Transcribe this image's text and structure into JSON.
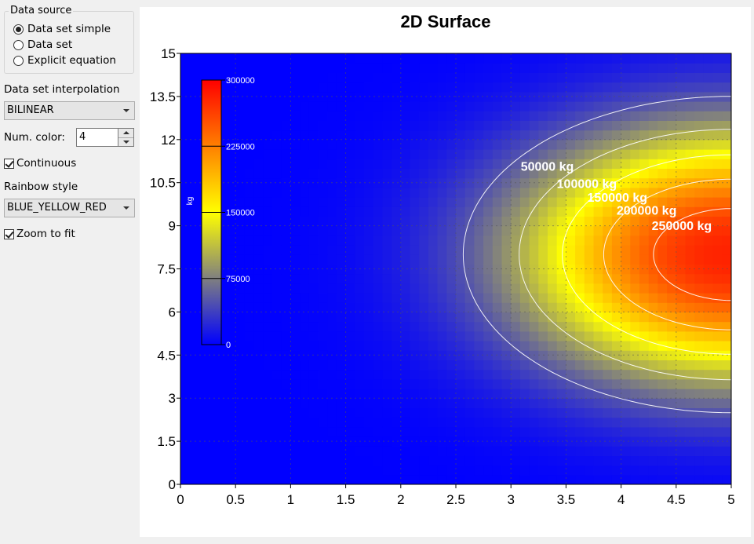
{
  "controls": {
    "data_source": {
      "title": "Data source",
      "options": [
        {
          "label": "Data set simple",
          "checked": true
        },
        {
          "label": "Data set",
          "checked": false
        },
        {
          "label": "Explicit equation",
          "checked": false
        }
      ]
    },
    "interpolation": {
      "label": "Data set interpolation",
      "value": "BILINEAR"
    },
    "num_color": {
      "label": "Num. color:",
      "value": "4"
    },
    "continuous": {
      "label": "Continuous",
      "checked": true
    },
    "rainbow": {
      "label": "Rainbow style",
      "value": "BLUE_YELLOW_RED"
    },
    "zoom": {
      "label": "Zoom to fit",
      "checked": true
    }
  },
  "chart_data": {
    "type": "heatmap",
    "title": "2D Surface",
    "xlabel": "",
    "ylabel": "",
    "xlim": [
      0,
      5
    ],
    "ylim": [
      0,
      15
    ],
    "xticks": [
      "0",
      "0.5",
      "1",
      "1.5",
      "2",
      "2.5",
      "3",
      "3.5",
      "4",
      "4.5",
      "5"
    ],
    "yticks": [
      "0",
      "1.5",
      "3",
      "4.5",
      "6",
      "7.5",
      "9",
      "10.5",
      "12",
      "13.5",
      "15"
    ],
    "grid": true,
    "colormap": [
      "#0000ff",
      "#ffff00",
      "#ff0000"
    ],
    "value_range": [
      0,
      300000
    ],
    "peak": {
      "x": 5,
      "y": 8,
      "value": 280000
    },
    "colorbar": {
      "label": "kg",
      "ticks": [
        "300000",
        "225000",
        "150000",
        "75000",
        "0"
      ],
      "placement": "top-left"
    },
    "contours": [
      {
        "label": "50000 kg",
        "value": 50000
      },
      {
        "label": "100000 kg",
        "value": 100000
      },
      {
        "label": "150000 kg",
        "value": 150000
      },
      {
        "label": "200000 kg",
        "value": 200000
      },
      {
        "label": "250000 kg",
        "value": 250000
      }
    ]
  }
}
